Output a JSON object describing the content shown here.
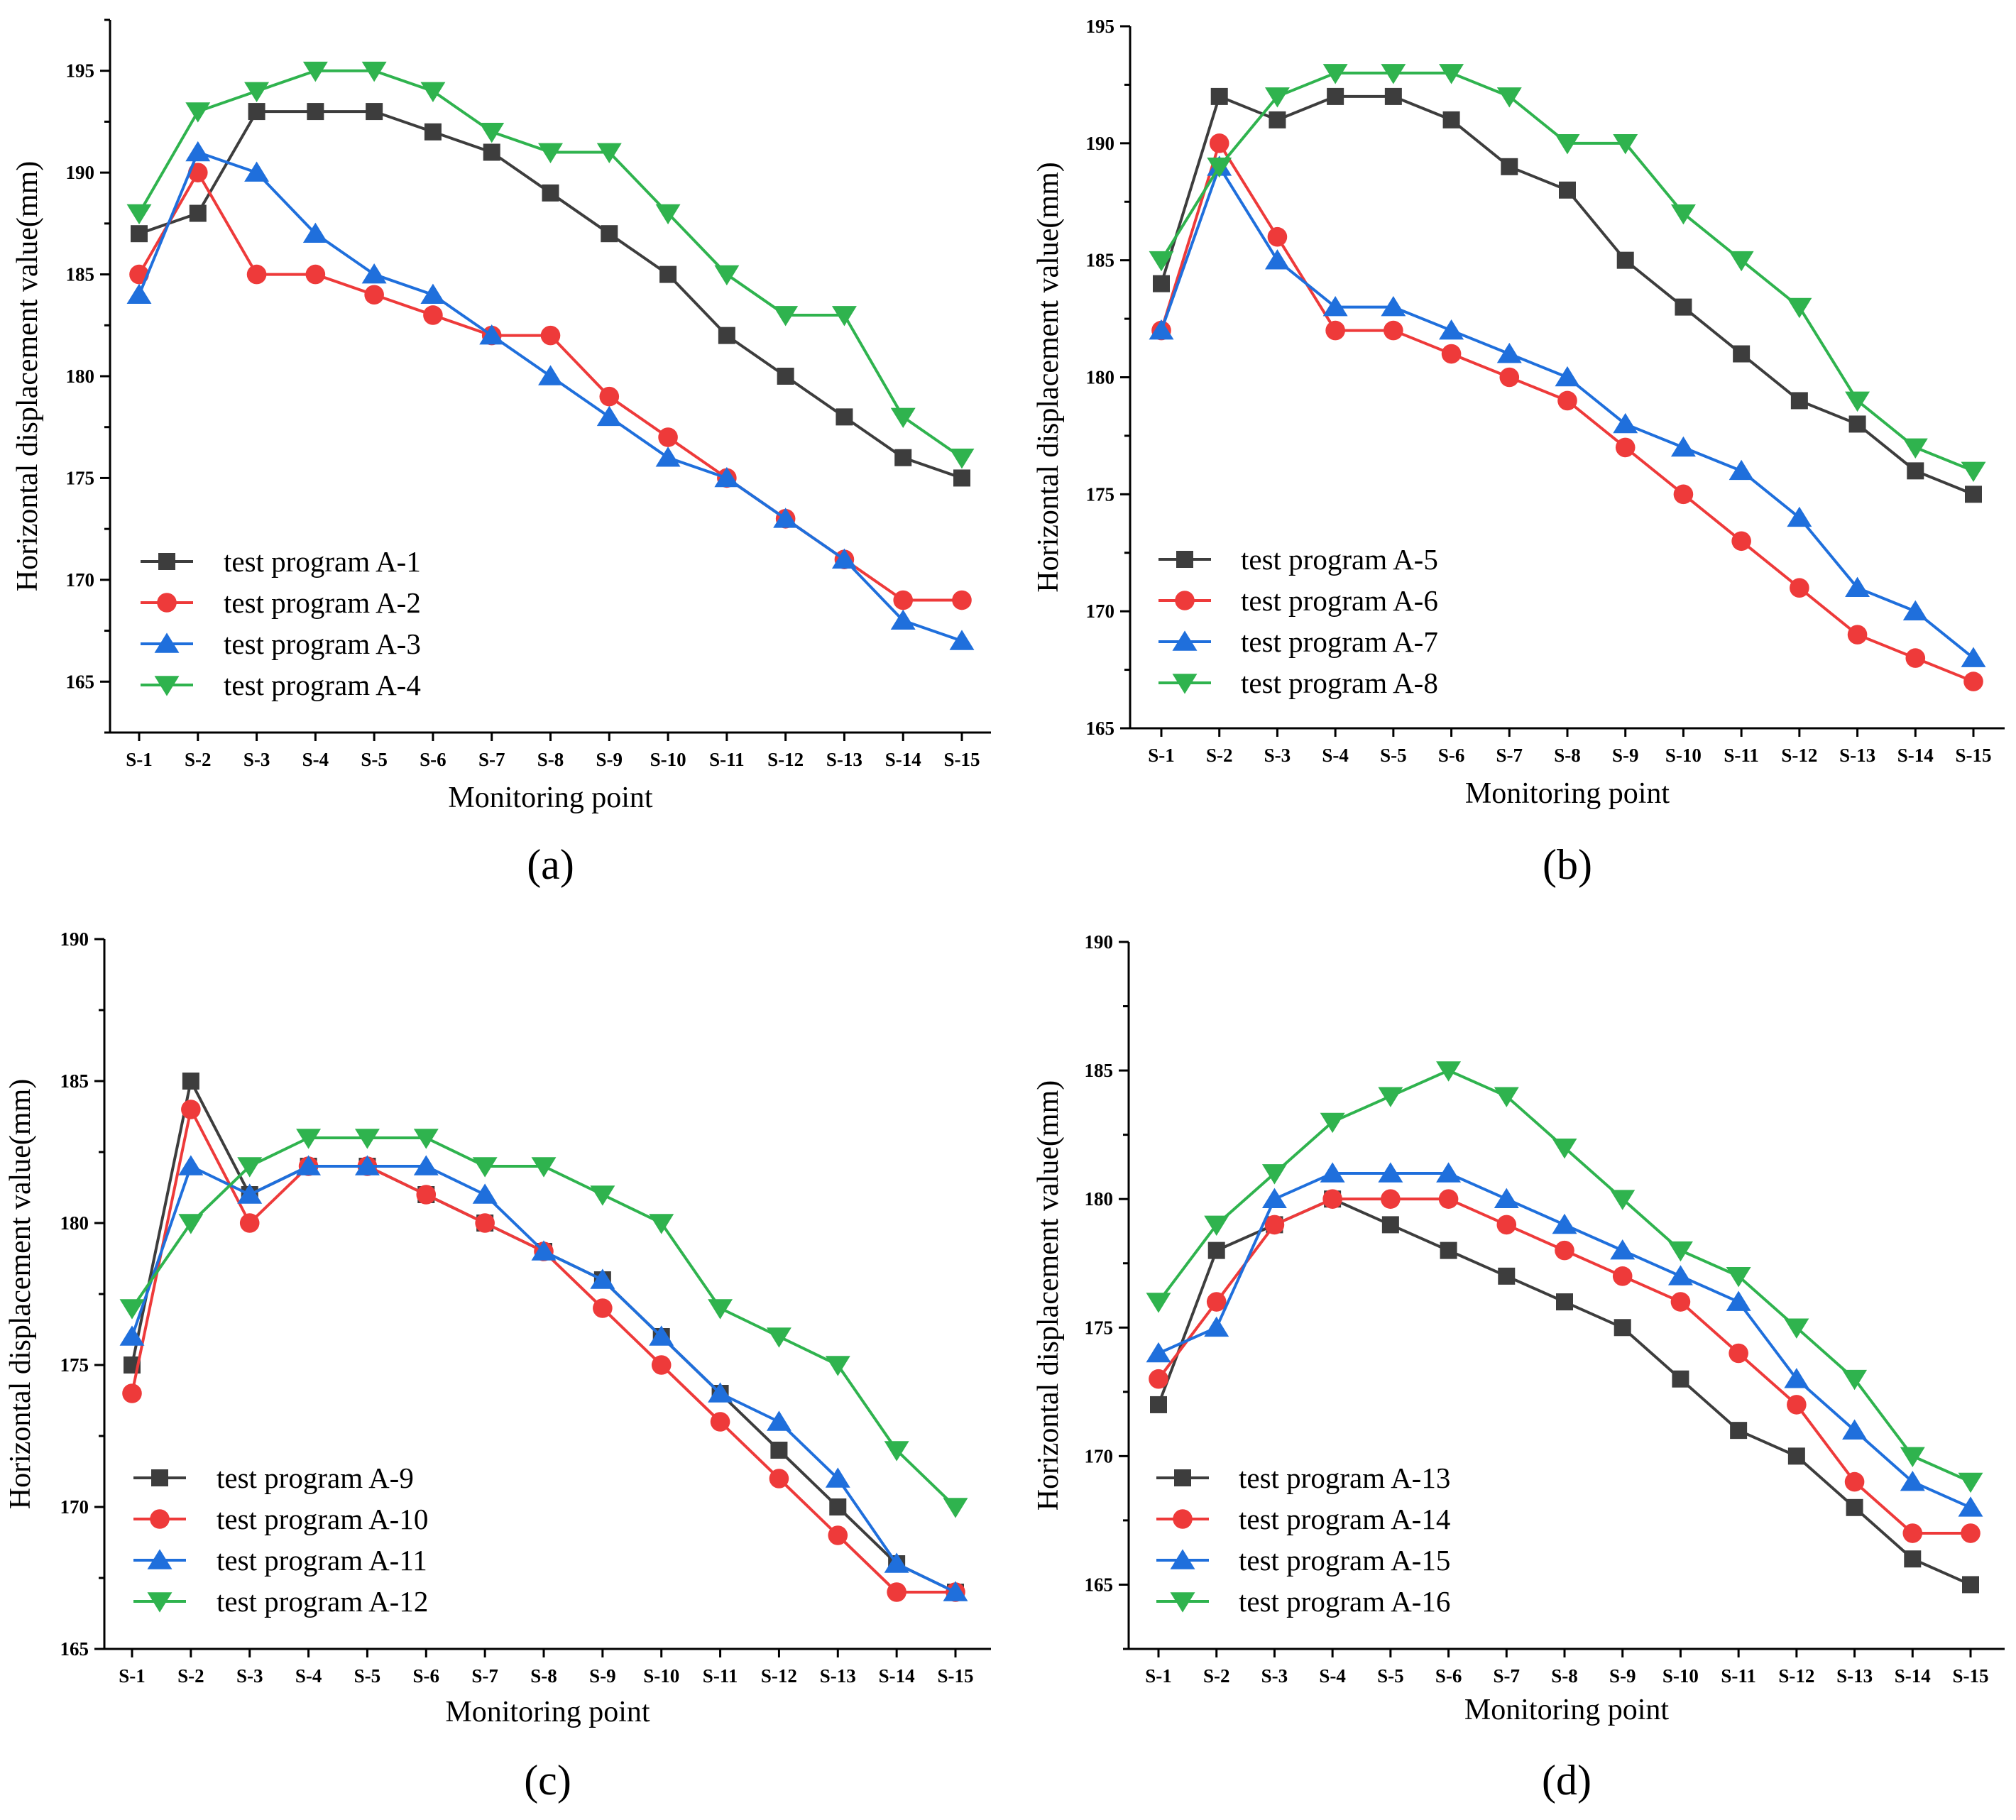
{
  "chart_data": [
    {
      "type": "line",
      "panel_label": "(a)",
      "xlabel": "Monitoring point",
      "ylabel": "Horizontal displacement value(mm)",
      "categories": [
        "S-1",
        "S-2",
        "S-3",
        "S-4",
        "S-5",
        "S-6",
        "S-7",
        "S-8",
        "S-9",
        "S-10",
        "S-11",
        "S-12",
        "S-13",
        "S-14",
        "S-15"
      ],
      "ylim": [
        162.5,
        197.5
      ],
      "yticks": [
        "165",
        "170",
        "175",
        "180",
        "185",
        "190",
        "195"
      ],
      "legend_position": "bottom-left",
      "series": [
        {
          "name": "test program A-1",
          "color": "#3d3d3d",
          "marker": "square",
          "values": [
            187,
            188,
            193,
            193,
            193,
            192,
            191,
            189,
            187,
            185,
            182,
            180,
            178,
            176,
            175
          ]
        },
        {
          "name": "test program A-2",
          "color": "#ee3a3a",
          "marker": "circle",
          "values": [
            185,
            190,
            185,
            185,
            184,
            183,
            182,
            182,
            179,
            177,
            175,
            173,
            171,
            169,
            169
          ]
        },
        {
          "name": "test program A-3",
          "color": "#1f6fdc",
          "marker": "triangle-up",
          "values": [
            184,
            191,
            190,
            187,
            185,
            184,
            182,
            180,
            178,
            176,
            175,
            173,
            171,
            168,
            167
          ]
        },
        {
          "name": "test program A-4",
          "color": "#2fb34e",
          "marker": "triangle-down",
          "values": [
            188,
            193,
            194,
            195,
            195,
            194,
            192,
            191,
            191,
            188,
            185,
            183,
            183,
            178,
            176
          ]
        }
      ]
    },
    {
      "type": "line",
      "panel_label": "(b)",
      "xlabel": "Monitoring point",
      "ylabel": "Horizontal displacement value(mm)",
      "categories": [
        "S-1",
        "S-2",
        "S-3",
        "S-4",
        "S-5",
        "S-6",
        "S-7",
        "S-8",
        "S-9",
        "S-10",
        "S-11",
        "S-12",
        "S-13",
        "S-14",
        "S-15"
      ],
      "ylim": [
        165,
        195
      ],
      "yticks": [
        "165",
        "170",
        "175",
        "180",
        "185",
        "190",
        "195"
      ],
      "legend_position": "bottom-left",
      "series": [
        {
          "name": "test program A-5",
          "color": "#3d3d3d",
          "marker": "square",
          "values": [
            184,
            192,
            191,
            192,
            192,
            191,
            189,
            188,
            185,
            183,
            181,
            179,
            178,
            176,
            175
          ]
        },
        {
          "name": "test program A-6",
          "color": "#ee3a3a",
          "marker": "circle",
          "values": [
            182,
            190,
            186,
            182,
            182,
            181,
            180,
            179,
            177,
            175,
            173,
            171,
            169,
            168,
            167
          ]
        },
        {
          "name": "test program A-7",
          "color": "#1f6fdc",
          "marker": "triangle-up",
          "values": [
            182,
            189,
            185,
            183,
            183,
            182,
            181,
            180,
            178,
            177,
            176,
            174,
            171,
            170,
            168
          ]
        },
        {
          "name": "test program A-8",
          "color": "#2fb34e",
          "marker": "triangle-down",
          "values": [
            185,
            189,
            192,
            193,
            193,
            193,
            192,
            190,
            190,
            187,
            185,
            183,
            179,
            177,
            176
          ]
        }
      ]
    },
    {
      "type": "line",
      "panel_label": "(c)",
      "xlabel": "Monitoring point",
      "ylabel": "Horizontal displacement value(mm)",
      "categories": [
        "S-1",
        "S-2",
        "S-3",
        "S-4",
        "S-5",
        "S-6",
        "S-7",
        "S-8",
        "S-9",
        "S-10",
        "S-11",
        "S-12",
        "S-13",
        "S-14",
        "S-15"
      ],
      "ylim": [
        165,
        190
      ],
      "yticks": [
        "165",
        "170",
        "175",
        "180",
        "185",
        "190"
      ],
      "legend_position": "bottom-left",
      "series": [
        {
          "name": "test program A-9",
          "color": "#3d3d3d",
          "marker": "square",
          "values": [
            175,
            185,
            181,
            182,
            182,
            181,
            180,
            179,
            178,
            176,
            174,
            172,
            170,
            168,
            167
          ]
        },
        {
          "name": "test program A-10",
          "color": "#ee3a3a",
          "marker": "circle",
          "values": [
            174,
            184,
            180,
            182,
            182,
            181,
            180,
            179,
            177,
            175,
            173,
            171,
            169,
            167,
            167
          ]
        },
        {
          "name": "test program A-11",
          "color": "#1f6fdc",
          "marker": "triangle-up",
          "values": [
            176,
            182,
            181,
            182,
            182,
            182,
            181,
            179,
            178,
            176,
            174,
            173,
            171,
            168,
            167
          ]
        },
        {
          "name": "test program A-12",
          "color": "#2fb34e",
          "marker": "triangle-down",
          "values": [
            177,
            180,
            182,
            183,
            183,
            183,
            182,
            182,
            181,
            180,
            177,
            176,
            175,
            172,
            170
          ]
        }
      ]
    },
    {
      "type": "line",
      "panel_label": "(d)",
      "xlabel": "Monitoring point",
      "ylabel": "Horizontal displacement value(mm)",
      "categories": [
        "S-1",
        "S-2",
        "S-3",
        "S-4",
        "S-5",
        "S-6",
        "S-7",
        "S-8",
        "S-9",
        "S-10",
        "S-11",
        "S-12",
        "S-13",
        "S-14",
        "S-15"
      ],
      "ylim": [
        162.5,
        190
      ],
      "yticks": [
        "165",
        "170",
        "175",
        "180",
        "185",
        "190"
      ],
      "legend_position": "bottom-left",
      "series": [
        {
          "name": "test program A-13",
          "color": "#3d3d3d",
          "marker": "square",
          "values": [
            172,
            178,
            179,
            180,
            179,
            178,
            177,
            176,
            175,
            173,
            171,
            170,
            168,
            166,
            165
          ]
        },
        {
          "name": "test program A-14",
          "color": "#ee3a3a",
          "marker": "circle",
          "values": [
            173,
            176,
            179,
            180,
            180,
            180,
            179,
            178,
            177,
            176,
            174,
            172,
            169,
            167,
            167
          ]
        },
        {
          "name": "test program A-15",
          "color": "#1f6fdc",
          "marker": "triangle-up",
          "values": [
            174,
            175,
            180,
            181,
            181,
            181,
            180,
            179,
            178,
            177,
            176,
            173,
            171,
            169,
            168
          ]
        },
        {
          "name": "test program A-16",
          "color": "#2fb34e",
          "marker": "triangle-down",
          "values": [
            176,
            179,
            181,
            183,
            184,
            185,
            184,
            182,
            180,
            178,
            177,
            175,
            173,
            170,
            169
          ]
        }
      ]
    }
  ]
}
